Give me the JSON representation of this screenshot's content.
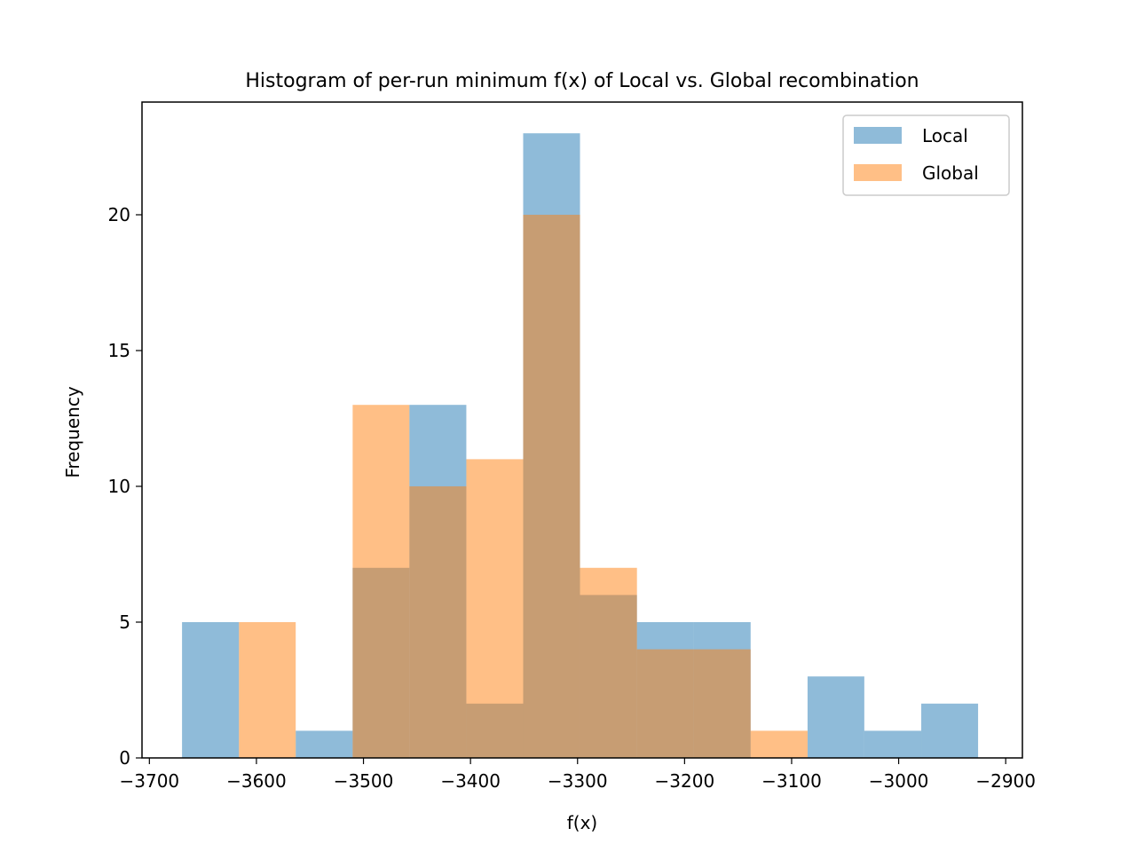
{
  "chart_data": {
    "type": "bar",
    "title": "Histogram of per-run minimum f(x) of Local vs. Global recombination",
    "xlabel": "f(x)",
    "ylabel": "Frequency",
    "xlim": [
      -3706.9,
      -2884.4
    ],
    "ylim": [
      0,
      24.15
    ],
    "xticks": [
      -3700,
      -3600,
      -3500,
      -3400,
      -3300,
      -3200,
      -3100,
      -3000,
      -2900
    ],
    "xtick_labels": [
      "−3700",
      "−3600",
      "−3500",
      "−3400",
      "−3300",
      "−3200",
      "−3100",
      "−3000",
      "−2900"
    ],
    "yticks": [
      0,
      5,
      10,
      15,
      20
    ],
    "ytick_labels": [
      "0",
      "5",
      "10",
      "15",
      "20"
    ],
    "bin_edges": [
      -3669.5,
      -3616.3,
      -3563.3,
      -3510.1,
      -3457.1,
      -3403.9,
      -3350.8,
      -3297.7,
      -3244.5,
      -3191.5,
      -3138.3,
      -3085.1,
      -3032.1,
      -2978.9,
      -2925.8
    ],
    "legend_position": "upper right",
    "grid": false,
    "series": [
      {
        "name": "Local",
        "color": "#1f77b4",
        "alpha": 0.5,
        "values": [
          5,
          0,
          1,
          7,
          13,
          2,
          23,
          6,
          5,
          5,
          0,
          3,
          1,
          2
        ]
      },
      {
        "name": "Global",
        "color": "#ff7f0e",
        "alpha": 0.5,
        "values": [
          0,
          5,
          0,
          13,
          10,
          11,
          20,
          7,
          4,
          4,
          1,
          0,
          0,
          0
        ]
      }
    ]
  }
}
